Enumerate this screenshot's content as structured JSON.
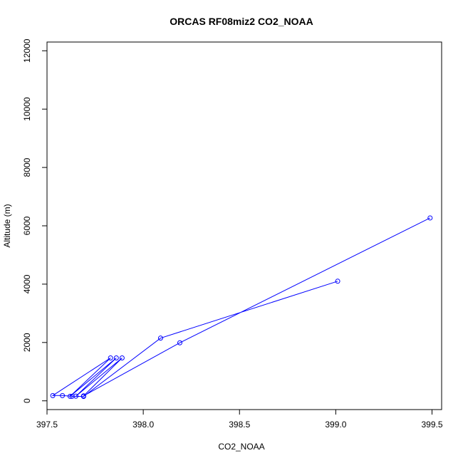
{
  "chart_data": {
    "type": "line",
    "title": "ORCAS RF08miz2 CO2_NOAA",
    "xlabel": "CO2_NOAA",
    "ylabel": "Altitude (m)",
    "xlim": [
      397.5,
      399.55
    ],
    "ylim": [
      -300,
      12300
    ],
    "x_ticks": [
      397.5,
      398.0,
      398.5,
      399.0,
      399.5
    ],
    "x_tick_labels": [
      "397.5",
      "398.0",
      "398.5",
      "399.0",
      "399.5"
    ],
    "y_ticks": [
      0,
      2000,
      4000,
      6000,
      8000,
      10000,
      12000
    ],
    "y_tick_labels": [
      "0",
      "2000",
      "4000",
      "6000",
      "8000",
      "10000",
      "12000"
    ],
    "grid": false,
    "series": [
      {
        "color": "#0000ff",
        "marker": "open-circle",
        "points": [
          {
            "x": 399.49,
            "y": 6270
          },
          {
            "x": 398.19,
            "y": 1990
          },
          {
            "x": 397.69,
            "y": 170
          },
          {
            "x": 397.89,
            "y": 1470
          },
          {
            "x": 397.65,
            "y": 160
          },
          {
            "x": 397.86,
            "y": 1470
          },
          {
            "x": 397.62,
            "y": 155
          },
          {
            "x": 397.83,
            "y": 1470
          },
          {
            "x": 397.53,
            "y": 180
          },
          {
            "x": 397.58,
            "y": 180
          },
          {
            "x": 397.63,
            "y": 155
          },
          {
            "x": 397.69,
            "y": 150
          },
          {
            "x": 398.09,
            "y": 2150
          },
          {
            "x": 399.01,
            "y": 4100
          }
        ]
      }
    ]
  }
}
